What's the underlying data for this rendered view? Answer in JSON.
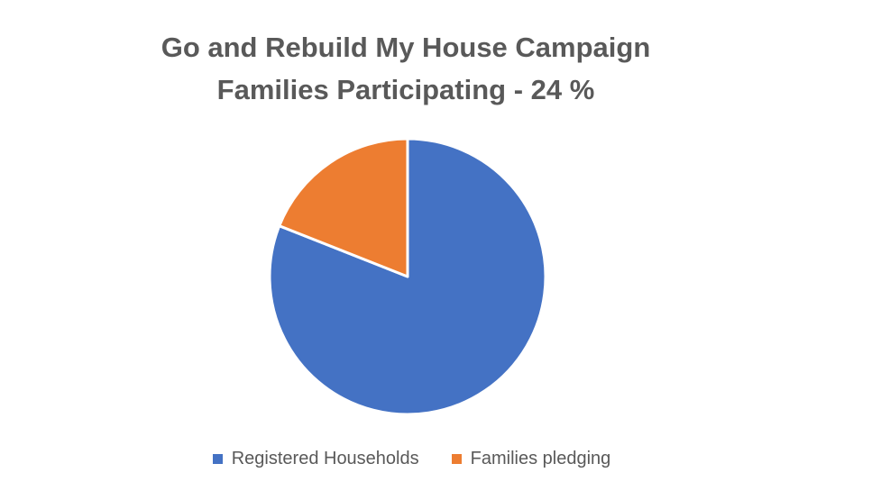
{
  "chart_data": {
    "type": "pie",
    "title_lines": [
      "Go and Rebuild My House Campaign",
      "Families Participating  - 24 %"
    ],
    "categories": [
      "Registered Households",
      "Families pledging"
    ],
    "values": [
      81,
      19
    ],
    "colors": [
      "#4472C4",
      "#ED7D31"
    ],
    "start_angle_deg": 0,
    "direction": "clockwise",
    "legend_position": "bottom"
  }
}
